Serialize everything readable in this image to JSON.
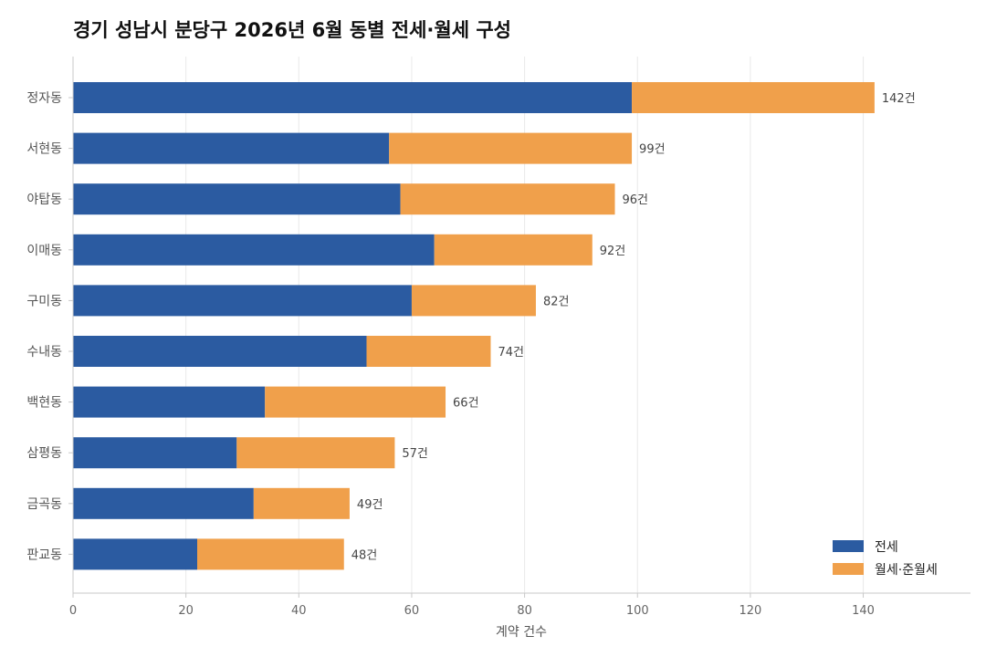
{
  "chart_data": {
    "type": "bar",
    "orientation": "horizontal",
    "stacked": true,
    "title": "경기 성남시 분당구 2026년 6월 동별 전세·월세 구성",
    "xlabel": "계약 건수",
    "ylabel": "",
    "xlim": [
      0,
      159
    ],
    "xticks": [
      0,
      20,
      40,
      60,
      80,
      100,
      120,
      140
    ],
    "grid": true,
    "legend_position": "bottom-right",
    "total_suffix": "건",
    "categories": [
      "정자동",
      "서현동",
      "야탑동",
      "이매동",
      "구미동",
      "수내동",
      "백현동",
      "삼평동",
      "금곡동",
      "판교동"
    ],
    "totals": [
      142,
      99,
      96,
      92,
      82,
      74,
      66,
      57,
      49,
      48
    ],
    "series": [
      {
        "name": "전세",
        "color": "#2b5ba1",
        "values": [
          99,
          56,
          58,
          64,
          60,
          52,
          34,
          29,
          32,
          22
        ]
      },
      {
        "name": "월세·준월세",
        "color": "#f0a04b",
        "values": [
          43,
          43,
          38,
          28,
          22,
          22,
          32,
          28,
          17,
          26
        ]
      }
    ]
  }
}
